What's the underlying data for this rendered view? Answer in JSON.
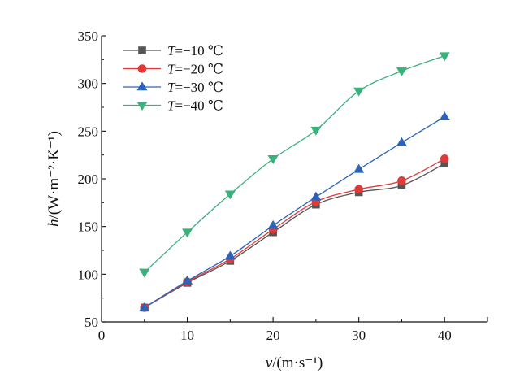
{
  "chart_data": {
    "type": "line",
    "title": "",
    "xlabel": "v/(m·s⁻¹)",
    "xlabel_var": "v",
    "xlabel_unit": "/(m·s⁻¹)",
    "ylabel": "h/(W·m⁻²·K⁻¹)",
    "ylabel_var": "h",
    "ylabel_unit": "/(W·m⁻²·K⁻¹)",
    "xlim": [
      0,
      45
    ],
    "ylim": [
      50,
      350
    ],
    "xticks": [
      0,
      10,
      20,
      30,
      40
    ],
    "yticks": [
      50,
      100,
      150,
      200,
      250,
      300,
      350
    ],
    "x": [
      5,
      10,
      15,
      20,
      25,
      30,
      35,
      40
    ],
    "legend_position": "top-left",
    "grid": false,
    "series": [
      {
        "name": "T=−10 ℃",
        "name_var": "T",
        "name_rest": "=−10 ℃",
        "marker": "square",
        "color": "#555555",
        "values": [
          65,
          91,
          114,
          144,
          173,
          186,
          193,
          216
        ]
      },
      {
        "name": "T=−20 ℃",
        "name_var": "T",
        "name_rest": "=−20 ℃",
        "marker": "circle",
        "color": "#e03a3a",
        "values": [
          65,
          92,
          116,
          147,
          176,
          189,
          198,
          221
        ]
      },
      {
        "name": "T=−30 ℃",
        "name_var": "T",
        "name_rest": "=−30 ℃",
        "marker": "triangle-up",
        "color": "#2a63b8",
        "values": [
          65,
          93,
          119,
          151,
          181,
          210,
          238,
          265
        ]
      },
      {
        "name": "T=−40 ℃",
        "name_var": "T",
        "name_rest": "=−40 ℃",
        "marker": "triangle-down",
        "color": "#3ab07a",
        "values": [
          102,
          144,
          184,
          221,
          251,
          292,
          313,
          329
        ]
      }
    ]
  }
}
